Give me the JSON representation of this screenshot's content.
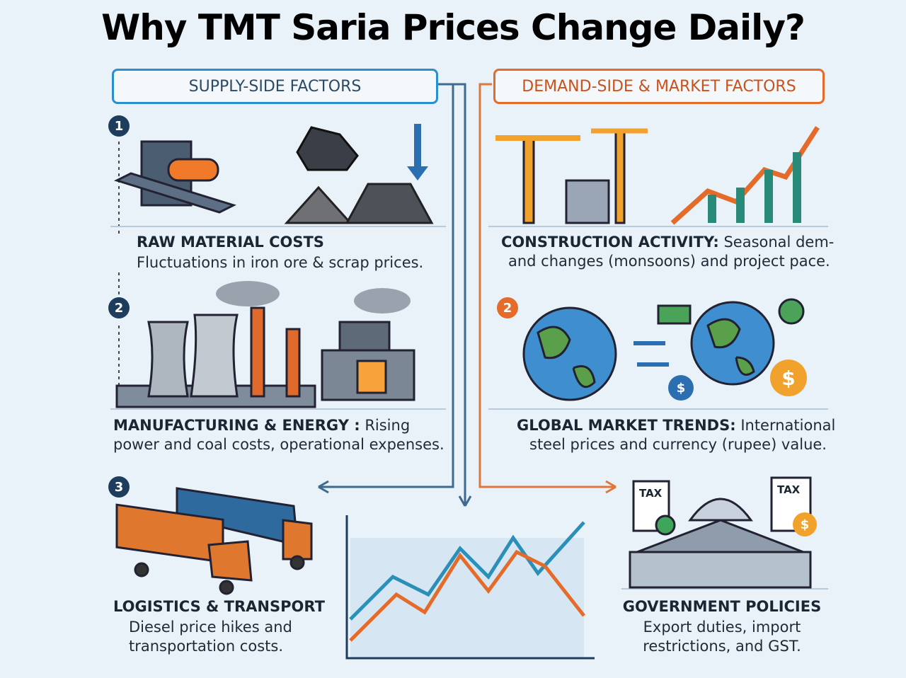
{
  "title": "Why TMT Saria Prices Change Daily?",
  "supply": {
    "header": "SUPPLY-SIDE FACTORS",
    "factors": [
      {
        "number": "1",
        "name": "RAW MATERIAL COSTS",
        "lines": [
          "Fluctuations in iron ore & scrap prices."
        ]
      },
      {
        "number": "2",
        "name": "MANUFACTURING & ENERGY :",
        "lines": [
          "Rising",
          "power and coal costs, operational expenses."
        ]
      },
      {
        "number": "3",
        "name": "LOGISTICS & TRANSPORT",
        "lines": [
          "Diesel price hikes and",
          "transportation costs."
        ]
      }
    ]
  },
  "demand": {
    "header": "DEMAND-SIDE & MARKET FACTORS",
    "factors": [
      {
        "name": "CONSTRUCTION ACTIVITY:",
        "lines": [
          "Seasonal dem-",
          "and changes (monsoons) and project pace."
        ]
      },
      {
        "number": "2",
        "name": "GLOBAL MARKET TRENDS:",
        "lines": [
          "International",
          "steel prices and currency (rupee) value."
        ]
      },
      {
        "name": "GOVERNMENT POLICIES",
        "lines": [
          "Export duties, import",
          "restrictions, and GST."
        ]
      }
    ]
  },
  "icons": {
    "tax": [
      "TAX",
      "TAX"
    ],
    "currency": [
      "$",
      "$",
      "$"
    ]
  }
}
